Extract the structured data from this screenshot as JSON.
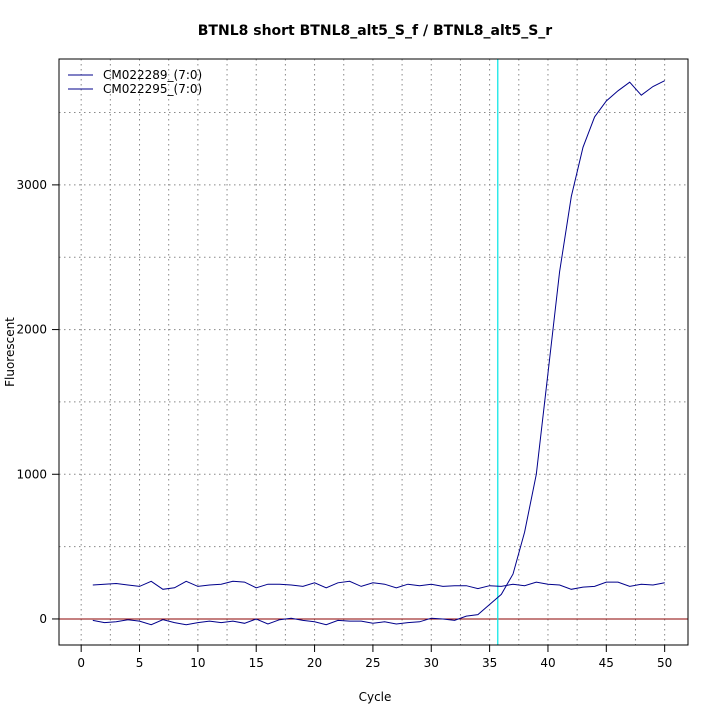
{
  "chart_data": {
    "type": "line",
    "title": "BTNL8 short BTNL8_alt5_S_f / BTNL8_alt5_S_r",
    "xlabel": "Cycle",
    "ylabel": "Fluorescent",
    "xlim": [
      -1.9,
      52.0
    ],
    "ylim": [
      -180,
      3870
    ],
    "x_ticks": [
      0,
      5,
      10,
      15,
      20,
      25,
      30,
      35,
      40,
      45,
      50
    ],
    "y_ticks": [
      0,
      1000,
      2000,
      3000
    ],
    "grid": true,
    "legend_position": "top-left",
    "threshold_cycle": 35.7,
    "threshold_color": "#00e5e5",
    "baseline_value": 0,
    "baseline_color": "#8b0000",
    "series": [
      {
        "name": "CM022289_(7:0)",
        "color": "#00008b",
        "x": [
          1,
          2,
          3,
          4,
          5,
          6,
          7,
          8,
          9,
          10,
          11,
          12,
          13,
          14,
          15,
          16,
          17,
          18,
          19,
          20,
          21,
          22,
          23,
          24,
          25,
          26,
          27,
          28,
          29,
          30,
          31,
          32,
          33,
          34,
          35,
          36,
          37,
          38,
          39,
          40,
          41,
          42,
          43,
          44,
          45,
          46,
          47,
          48,
          49,
          50
        ],
        "values": [
          -10,
          -25,
          -20,
          -5,
          -15,
          -40,
          -5,
          -25,
          -40,
          -25,
          -15,
          -25,
          -15,
          -30,
          0,
          -35,
          -5,
          5,
          -10,
          -20,
          -40,
          -10,
          -15,
          -15,
          -30,
          -20,
          -35,
          -25,
          -20,
          5,
          0,
          -10,
          20,
          30,
          100,
          170,
          310,
          600,
          1000,
          1700,
          2400,
          2920,
          3260,
          3470,
          3580,
          3650,
          3710,
          3620,
          3680,
          3720
        ]
      },
      {
        "name": "CM022295_(7:0)",
        "color": "#00008b",
        "x": [
          1,
          2,
          3,
          4,
          5,
          6,
          7,
          8,
          9,
          10,
          11,
          12,
          13,
          14,
          15,
          16,
          17,
          18,
          19,
          20,
          21,
          22,
          23,
          24,
          25,
          26,
          27,
          28,
          29,
          30,
          31,
          32,
          33,
          34,
          35,
          36,
          37,
          38,
          39,
          40,
          41,
          42,
          43,
          44,
          45,
          46,
          47,
          48,
          49,
          50
        ],
        "values": [
          235,
          240,
          245,
          235,
          225,
          260,
          205,
          215,
          260,
          225,
          235,
          240,
          260,
          255,
          215,
          240,
          240,
          235,
          225,
          250,
          215,
          250,
          260,
          225,
          250,
          240,
          215,
          240,
          230,
          240,
          225,
          230,
          230,
          210,
          230,
          225,
          240,
          230,
          255,
          240,
          235,
          205,
          220,
          225,
          255,
          255,
          225,
          240,
          235,
          250
        ]
      }
    ]
  }
}
